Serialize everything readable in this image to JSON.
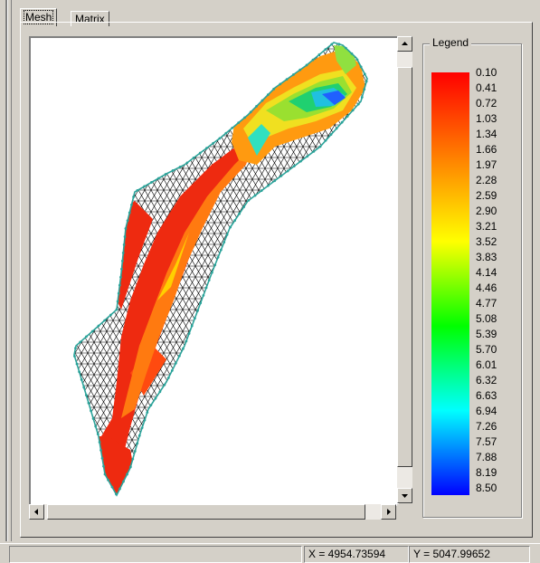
{
  "tabs": [
    {
      "label": "Mesh",
      "active": true
    },
    {
      "label": "Matrix",
      "active": false
    }
  ],
  "legend": {
    "title": "Legend",
    "gradient_colors": [
      "#ff0000",
      "#ff7f00",
      "#ffff00",
      "#00ff00",
      "#00ffff",
      "#0000ff"
    ],
    "values": [
      "0.10",
      "0.41",
      "0.72",
      "1.03",
      "1.34",
      "1.66",
      "1.97",
      "2.28",
      "2.59",
      "2.90",
      "3.21",
      "3.52",
      "3.83",
      "4.14",
      "4.46",
      "4.77",
      "5.08",
      "5.39",
      "5.70",
      "6.01",
      "6.32",
      "6.63",
      "6.94",
      "7.26",
      "7.57",
      "7.88",
      "8.19",
      "8.50"
    ]
  },
  "status": {
    "x_readout": "X = 4954.73594",
    "y_readout": "Y = 5047.99652"
  },
  "icons": {
    "scroll_up": "arrow-up-icon",
    "scroll_down": "arrow-down-icon",
    "scroll_left": "arrow-left-icon",
    "scroll_right": "arrow-right-icon"
  },
  "colors": {
    "mesh_line": "#000000",
    "boundary": "#2aa39a"
  }
}
